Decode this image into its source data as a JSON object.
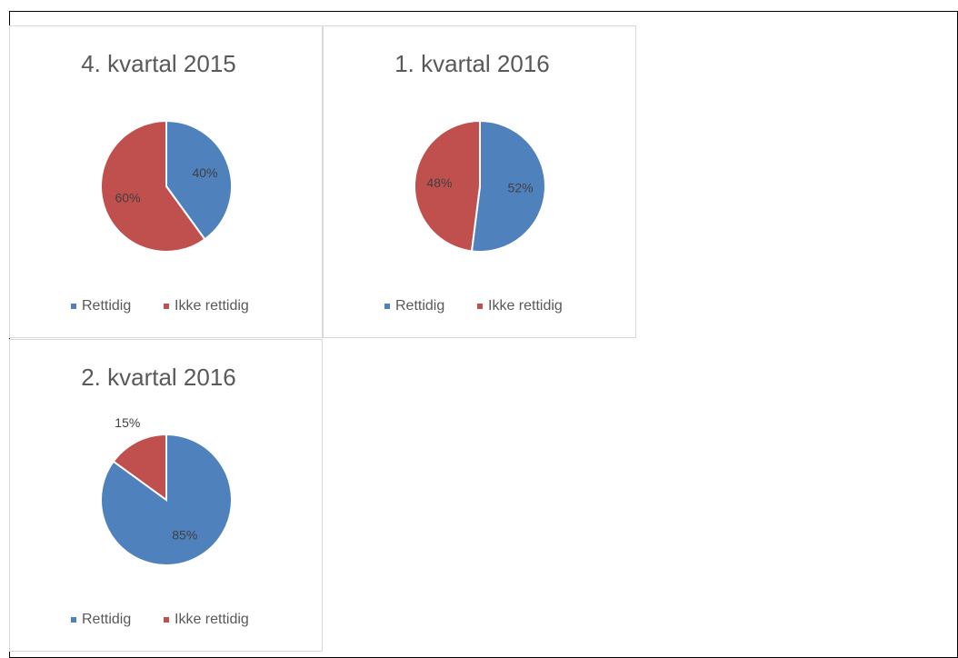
{
  "chart_data": [
    {
      "type": "pie",
      "title": "4. kvartal 2015",
      "categories": [
        "Rettidig",
        "Ikke rettidig"
      ],
      "values": [
        40,
        60
      ],
      "value_labels": [
        "40%",
        "60%"
      ],
      "colors": [
        "#4f81bd",
        "#c0504d"
      ]
    },
    {
      "type": "pie",
      "title": "1. kvartal 2016",
      "categories": [
        "Rettidig",
        "Ikke rettidig"
      ],
      "values": [
        52,
        48
      ],
      "value_labels": [
        "52%",
        "48%"
      ],
      "colors": [
        "#4f81bd",
        "#c0504d"
      ]
    },
    {
      "type": "pie",
      "title": "2. kvartal 2016",
      "categories": [
        "Rettidig",
        "Ikke rettidig"
      ],
      "values": [
        85,
        15
      ],
      "value_labels": [
        "85%",
        "15%"
      ],
      "colors": [
        "#4f81bd",
        "#c0504d"
      ]
    }
  ]
}
